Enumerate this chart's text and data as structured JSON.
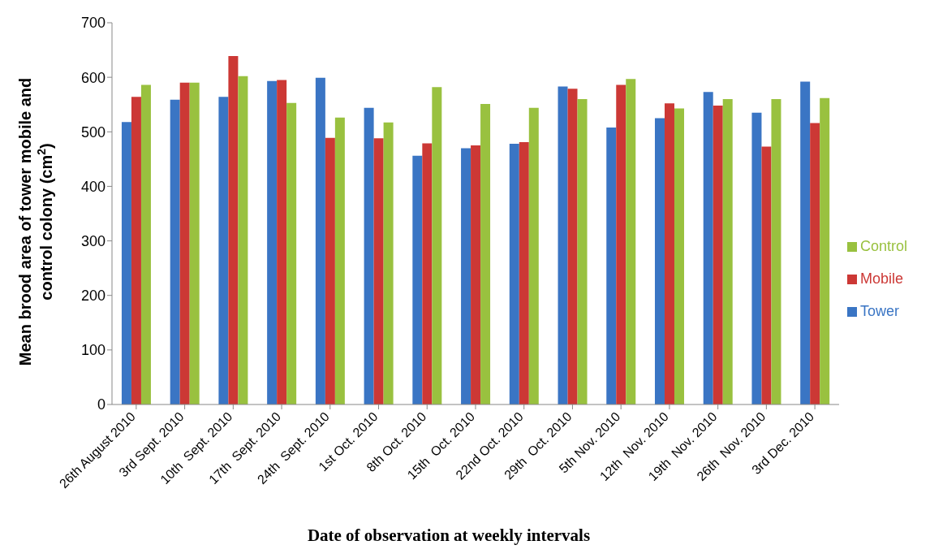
{
  "chart_data": {
    "type": "bar",
    "xlabel": "Date of observation at weekly intervals",
    "ylabel": "Mean brood area of tower mobile and control colony (cm$^{2}$)",
    "categories": [
      "26th August 2010",
      "3rd Sept. 2010",
      "10th  Sept. 2010",
      "17th  Sept. 2010",
      "24th  Sept. 2010",
      "1st Oct. 2010",
      "8th Oct. 2010",
      "15th  Oct. 2010",
      "22nd Oct. 2010",
      "29th  Oct. 2010",
      "5th Nov. 2010",
      "12th  Nov. 2010",
      "19th  Nov. 2010",
      "26th  Nov. 2010",
      "3rd Dec. 2010"
    ],
    "series": [
      {
        "name": "Tower",
        "color": "#3a75c4",
        "values": [
          518,
          559,
          564,
          593,
          599,
          544,
          456,
          470,
          478,
          583,
          508,
          525,
          573,
          535,
          592
        ]
      },
      {
        "name": "Mobile",
        "color": "#cc3835",
        "values": [
          564,
          590,
          639,
          595,
          489,
          488,
          479,
          475,
          481,
          579,
          586,
          552,
          548,
          473,
          516
        ]
      },
      {
        "name": "Control",
        "color": "#99c13f",
        "values": [
          586,
          590,
          602,
          553,
          526,
          517,
          582,
          551,
          544,
          560,
          597,
          543,
          560,
          560,
          562
        ]
      }
    ],
    "ylim": [
      0,
      700
    ],
    "yticks": [
      0,
      100,
      200,
      300,
      400,
      500,
      600,
      700
    ],
    "grid": false,
    "legend": "right"
  }
}
